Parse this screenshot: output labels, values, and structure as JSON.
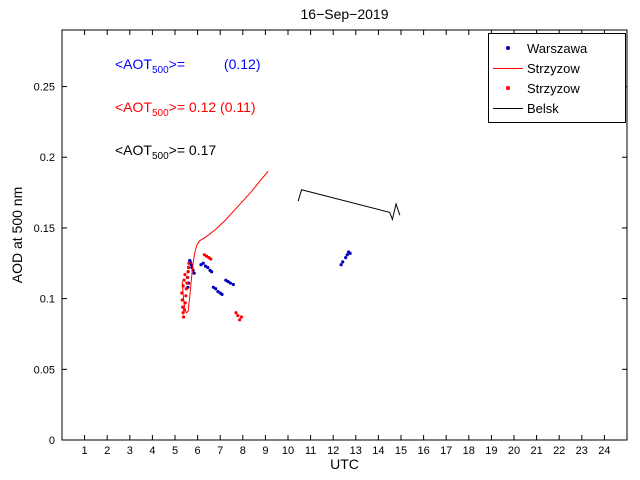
{
  "chart_data": {
    "type": "mixed-scatter-line",
    "title": "16−Sep−2019",
    "xlabel": "UTC",
    "ylabel": "AOD at 500 nm",
    "xlim": [
      0,
      25
    ],
    "ylim": [
      0,
      0.29
    ],
    "xtick_labels": [
      "1",
      "2",
      "3",
      "4",
      "5",
      "6",
      "7",
      "8",
      "9",
      "10",
      "11",
      "12",
      "13",
      "14",
      "15",
      "16",
      "17",
      "18",
      "19",
      "20",
      "21",
      "22",
      "23",
      "24"
    ],
    "ytick_labels": [
      "0",
      "0.05",
      "0.1",
      "0.15",
      "0.2",
      "0.25"
    ],
    "grid": false,
    "legend_position": "top-right",
    "frame_color": "#000000",
    "series": [
      {
        "name": "Warszawa",
        "type": "scatter",
        "color": "#0000bb",
        "points": [
          [
            5.55,
            0.115
          ],
          [
            5.57,
            0.108
          ],
          [
            5.58,
            0.119
          ],
          [
            5.6,
            0.111
          ],
          [
            5.6,
            0.122
          ],
          [
            5.62,
            0.125
          ],
          [
            5.65,
            0.127
          ],
          [
            5.68,
            0.126
          ],
          [
            5.72,
            0.124
          ],
          [
            5.75,
            0.122
          ],
          [
            5.8,
            0.12
          ],
          [
            5.85,
            0.118
          ],
          [
            6.15,
            0.124
          ],
          [
            6.25,
            0.125
          ],
          [
            6.35,
            0.123
          ],
          [
            6.45,
            0.122
          ],
          [
            6.55,
            0.12
          ],
          [
            6.62,
            0.119
          ],
          [
            6.7,
            0.108
          ],
          [
            6.8,
            0.107
          ],
          [
            6.9,
            0.105
          ],
          [
            7.0,
            0.104
          ],
          [
            7.08,
            0.103
          ],
          [
            7.25,
            0.113
          ],
          [
            7.35,
            0.112
          ],
          [
            7.45,
            0.111
          ],
          [
            7.58,
            0.11
          ],
          [
            12.35,
            0.124
          ],
          [
            12.42,
            0.126
          ],
          [
            12.55,
            0.129
          ],
          [
            12.62,
            0.131
          ],
          [
            12.68,
            0.133
          ],
          [
            12.75,
            0.132
          ]
        ]
      },
      {
        "name": "Strzyzow",
        "type": "line",
        "color": "#ff0000",
        "points": [
          [
            5.32,
            0.112
          ],
          [
            5.36,
            0.103
          ],
          [
            5.42,
            0.094
          ],
          [
            5.5,
            0.09
          ],
          [
            5.58,
            0.091
          ],
          [
            5.65,
            0.101
          ],
          [
            5.72,
            0.113
          ],
          [
            5.8,
            0.125
          ],
          [
            5.88,
            0.133
          ],
          [
            5.97,
            0.138
          ],
          [
            6.1,
            0.141
          ],
          [
            6.4,
            0.144
          ],
          [
            6.8,
            0.149
          ],
          [
            7.2,
            0.155
          ],
          [
            7.6,
            0.162
          ],
          [
            8.0,
            0.169
          ],
          [
            8.4,
            0.176
          ],
          [
            8.8,
            0.184
          ],
          [
            9.12,
            0.19
          ]
        ]
      },
      {
        "name": "Strzyzow",
        "type": "scatter",
        "color": "#ff0000",
        "points": [
          [
            5.3,
            0.104
          ],
          [
            5.32,
            0.099
          ],
          [
            5.34,
            0.094
          ],
          [
            5.36,
            0.09
          ],
          [
            5.38,
            0.087
          ],
          [
            5.42,
            0.092
          ],
          [
            5.45,
            0.097
          ],
          [
            5.48,
            0.102
          ],
          [
            5.5,
            0.107
          ],
          [
            5.53,
            0.111
          ],
          [
            5.56,
            0.115
          ],
          [
            5.58,
            0.119
          ],
          [
            5.6,
            0.122
          ],
          [
            5.62,
            0.125
          ],
          [
            5.44,
            0.117
          ],
          [
            5.4,
            0.113
          ],
          [
            5.36,
            0.109
          ],
          [
            6.3,
            0.131
          ],
          [
            6.4,
            0.13
          ],
          [
            6.5,
            0.129
          ],
          [
            6.58,
            0.128
          ],
          [
            7.7,
            0.09
          ],
          [
            7.78,
            0.088
          ],
          [
            7.86,
            0.085
          ],
          [
            7.94,
            0.087
          ]
        ]
      },
      {
        "name": "Belsk",
        "type": "line",
        "color": "#000000",
        "points": [
          [
            10.45,
            0.169
          ],
          [
            10.6,
            0.177
          ],
          [
            14.5,
            0.161
          ],
          [
            14.62,
            0.156
          ],
          [
            14.78,
            0.167
          ],
          [
            14.95,
            0.159
          ]
        ]
      }
    ],
    "legend": [
      {
        "label": "Warszawa",
        "marker": "dot",
        "color": "#0000bb"
      },
      {
        "label": "Strzyzow",
        "marker": "line",
        "color": "#ff0000"
      },
      {
        "label": "Strzyzow",
        "marker": "dot",
        "color": "#ff0000"
      },
      {
        "label": "Belsk",
        "marker": "line",
        "color": "#000000"
      }
    ],
    "annotations": [
      {
        "color": "#0000ff",
        "pre": "<AOT",
        "sub": "500",
        "post": ">=          (0.12)"
      },
      {
        "color": "#ff0000",
        "pre": "<AOT",
        "sub": "500",
        "post": ">= 0.12 (0.11)"
      },
      {
        "color": "#000000",
        "pre": "<AOT",
        "sub": "500",
        "post": ">= 0.17"
      }
    ]
  }
}
